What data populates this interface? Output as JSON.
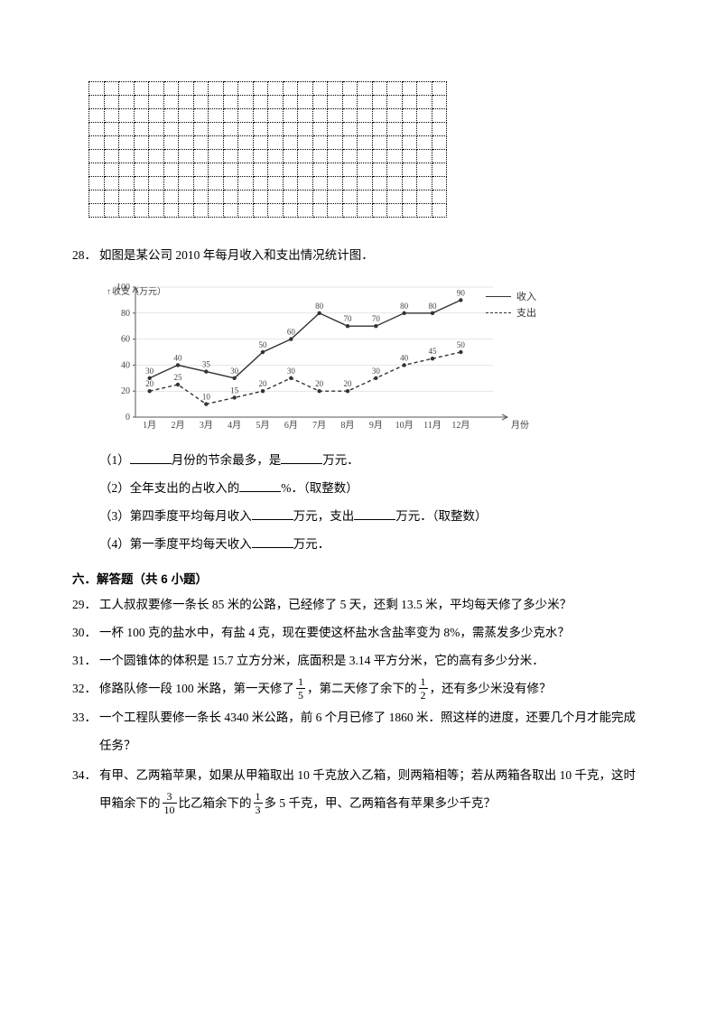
{
  "grid": {
    "rows": 10,
    "cols": 24
  },
  "q28": {
    "num": "28．",
    "intro": "如图是某公司 2010 年每月收入和支出情况统计图．",
    "chart": {
      "type": "line",
      "x_labels": [
        "1月",
        "2月",
        "3月",
        "4月",
        "5月",
        "6月",
        "7月",
        "8月",
        "9月",
        "10月",
        "11月",
        "12月"
      ],
      "y_ticks": [
        0,
        20,
        40,
        60,
        80,
        100
      ],
      "y_label": "收支（万元）",
      "x_label_end": "月份",
      "series_income": {
        "label": "收入",
        "style": "solid",
        "color": "#333333",
        "values": [
          30,
          40,
          35,
          30,
          50,
          60,
          80,
          70,
          70,
          80,
          80,
          90
        ],
        "value_labels": [
          "30",
          "40",
          "35",
          "30",
          "50",
          "60",
          "80",
          "70",
          "70",
          "80",
          "80",
          "90"
        ]
      },
      "series_expense": {
        "label": "支出",
        "style": "dashed",
        "color": "#333333",
        "values": [
          20,
          25,
          10,
          15,
          20,
          30,
          20,
          20,
          30,
          40,
          45,
          50
        ],
        "value_labels": [
          "20",
          "25",
          "10",
          "15",
          "20",
          "30",
          "20",
          "20",
          "30",
          "40",
          "45",
          "50"
        ]
      },
      "axis_color": "#555555",
      "font_size_axis": 10,
      "font_size_label": 9
    },
    "sub1_a": "（1）",
    "sub1_b": "月份的节余最多，是",
    "sub1_c": "万元．",
    "sub2_a": "（2）全年支出的占收入的",
    "sub2_b": "%．（取整数）",
    "sub3_a": "（3）第四季度平均每月收入",
    "sub3_b": "万元，支出",
    "sub3_c": "万元．（取整数）",
    "sub4_a": "（4）第一季度平均每天收入",
    "sub4_b": "万元．"
  },
  "sec6": {
    "title": "六．解答题（共 6 小题）"
  },
  "q29": {
    "num": "29．",
    "text": "工人叔叔要修一条长 85 米的公路，已经修了 5 天，还剩 13.5 米，平均每天修了多少米？"
  },
  "q30": {
    "num": "30．",
    "text": "一杯 100 克的盐水中，有盐 4 克，现在要使这杯盐水含盐率变为 8%，需蒸发多少克水？"
  },
  "q31": {
    "num": "31．",
    "text": "一个圆锥体的体积是 15.7 立方分米，底面积是 3.14 平方分米，它的高有多少分米．"
  },
  "q32": {
    "num": "32．",
    "a": "修路队修一段 100 米路，第一天修了",
    "f1n": "1",
    "f1d": "5",
    "b": "，第二天修了余下的",
    "f2n": "1",
    "f2d": "2",
    "c": "，还有多少米没有修？"
  },
  "q33": {
    "num": "33．",
    "line1": "一个工程队要修一条长 4340 米公路，前 6 个月已修了 1860 米．照这样的进度，还要几个月才能完成",
    "line2": "任务？"
  },
  "q34": {
    "num": "34．",
    "line1": "有甲、乙两箱苹果，如果从甲箱取出 10 千克放入乙箱，则两箱相等；若从两箱各取出 10 千克，这时",
    "line2a": "甲箱余下的",
    "f1n": "3",
    "f1d": "10",
    "line2b": "比乙箱余下的",
    "f2n": "1",
    "f2d": "3",
    "line2c": "多 5 千克，甲、乙两箱各有苹果多少千克？"
  }
}
